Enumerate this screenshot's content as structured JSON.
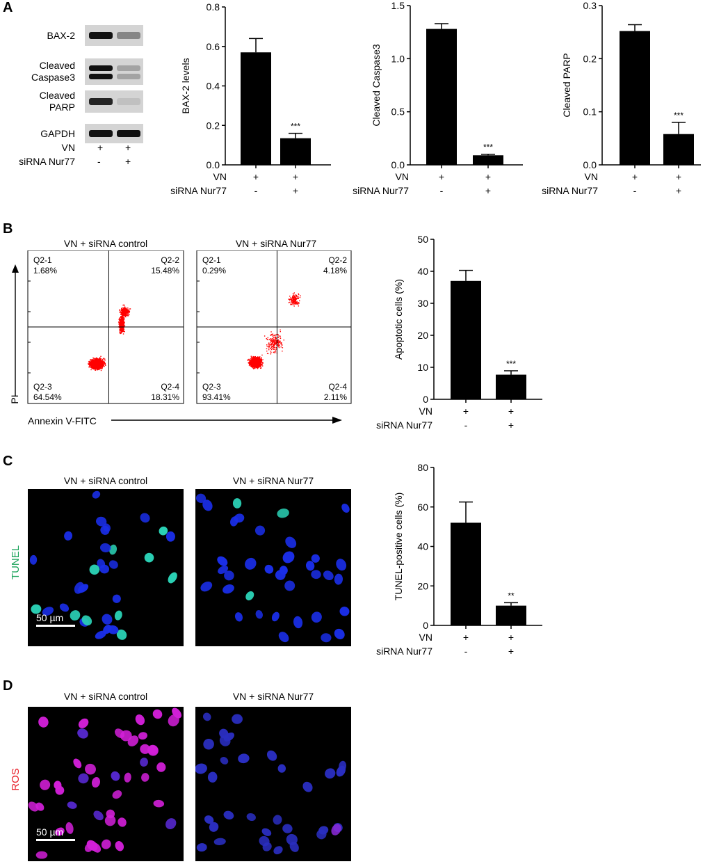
{
  "panels": {
    "a": "A",
    "b": "B",
    "c": "C",
    "d": "D"
  },
  "western_blot": {
    "bands": [
      {
        "name": "BAX-2",
        "intensity": [
          1.0,
          0.4
        ]
      },
      {
        "name": "Cleaved Caspase3",
        "intensity": [
          1.0,
          0.25
        ]
      },
      {
        "name": "Cleaved PARP",
        "intensity": [
          0.9,
          0.1
        ]
      },
      {
        "name": "GAPDH",
        "intensity": [
          1.0,
          1.0
        ]
      }
    ],
    "lane_rows": [
      {
        "label": "VN",
        "signs": [
          "+",
          "+"
        ]
      },
      {
        "label": "siRNA Nur77",
        "signs": [
          "-",
          "+"
        ]
      }
    ]
  },
  "chart_data": [
    {
      "type": "bar",
      "ylabel": "BAX-2 levels",
      "ylim": [
        0,
        0.8
      ],
      "yticks": [
        "0.0",
        "0.2",
        "0.4",
        "0.6",
        "0.8"
      ],
      "values": [
        0.57,
        0.135
      ],
      "errors": [
        0.07,
        0.025
      ],
      "significance": [
        "",
        "***"
      ],
      "rows": [
        {
          "label": "VN",
          "signs": [
            "+",
            "+"
          ]
        },
        {
          "label": "siRNA Nur77",
          "signs": [
            "-",
            "+"
          ]
        }
      ]
    },
    {
      "type": "bar",
      "ylabel": "Cleaved Caspase3",
      "ylim": [
        0,
        1.5
      ],
      "yticks": [
        "0.0",
        "0.5",
        "1.0",
        "1.5"
      ],
      "values": [
        1.28,
        0.09
      ],
      "errors": [
        0.05,
        0.01
      ],
      "significance": [
        "",
        "***"
      ],
      "rows": [
        {
          "label": "VN",
          "signs": [
            "+",
            "+"
          ]
        },
        {
          "label": "siRNA Nur77",
          "signs": [
            "-",
            "+"
          ]
        }
      ]
    },
    {
      "type": "bar",
      "ylabel": "Cleaved PARP",
      "ylim": [
        0,
        0.3
      ],
      "yticks": [
        "0.0",
        "0.1",
        "0.2",
        "0.3"
      ],
      "values": [
        0.252,
        0.058
      ],
      "errors": [
        0.012,
        0.022
      ],
      "significance": [
        "",
        "***"
      ],
      "rows": [
        {
          "label": "VN",
          "signs": [
            "+",
            "+"
          ]
        },
        {
          "label": "siRNA Nur77",
          "signs": [
            "-",
            "+"
          ]
        }
      ]
    },
    {
      "type": "bar",
      "ylabel": "Apoptotic cells (%)",
      "ylim": [
        0,
        50
      ],
      "yticks": [
        "0",
        "10",
        "20",
        "30",
        "40",
        "50"
      ],
      "values": [
        37,
        7.7
      ],
      "errors": [
        3.3,
        1.2
      ],
      "significance": [
        "",
        "***"
      ],
      "rows": [
        {
          "label": "VN",
          "signs": [
            "+",
            "+"
          ]
        },
        {
          "label": "siRNA Nur77",
          "signs": [
            "-",
            "+"
          ]
        }
      ]
    },
    {
      "type": "bar",
      "ylabel": "TUNEL-positive cells (%)",
      "ylim": [
        0,
        80
      ],
      "yticks": [
        "0",
        "20",
        "40",
        "60",
        "80"
      ],
      "values": [
        52,
        10
      ],
      "errors": [
        10.5,
        1.5
      ],
      "significance": [
        "",
        "**"
      ],
      "rows": [
        {
          "label": "VN",
          "signs": [
            "+",
            "+"
          ]
        },
        {
          "label": "siRNA Nur77",
          "signs": [
            "-",
            "+"
          ]
        }
      ]
    }
  ],
  "flow": {
    "y_axis_label": "PI",
    "x_axis_label": "Annexin V-FITC",
    "dot_color": "#ff0000",
    "plots": [
      {
        "title": "VN + siRNA control",
        "quadrants": {
          "q1": "Q2-1",
          "q1_pct": "1.68%",
          "q2": "Q2-2",
          "q2_pct": "15.48%",
          "q3": "Q2-3",
          "q3_pct": "64.54%",
          "q4": "Q2-4",
          "q4_pct": "18.31%"
        }
      },
      {
        "title": "VN + siRNA Nur77",
        "quadrants": {
          "q1": "Q2-1",
          "q1_pct": "0.29%",
          "q2": "Q2-2",
          "q2_pct": "4.18%",
          "q3": "Q2-3",
          "q3_pct": "93.41%",
          "q4": "Q2-4",
          "q4_pct": "2.11%"
        }
      }
    ]
  },
  "tunel": {
    "stain_label": "TUNEL",
    "stain_color": "#1aa35a",
    "scale_bar": "50 µm",
    "titles": [
      "VN + siRNA control",
      "VN + siRNA Nur77"
    ]
  },
  "ros": {
    "stain_label": "ROS",
    "stain_color": "#e8202a",
    "scale_bar": "50 µm",
    "titles": [
      "VN + siRNA control",
      "VN + siRNA Nur77"
    ]
  }
}
